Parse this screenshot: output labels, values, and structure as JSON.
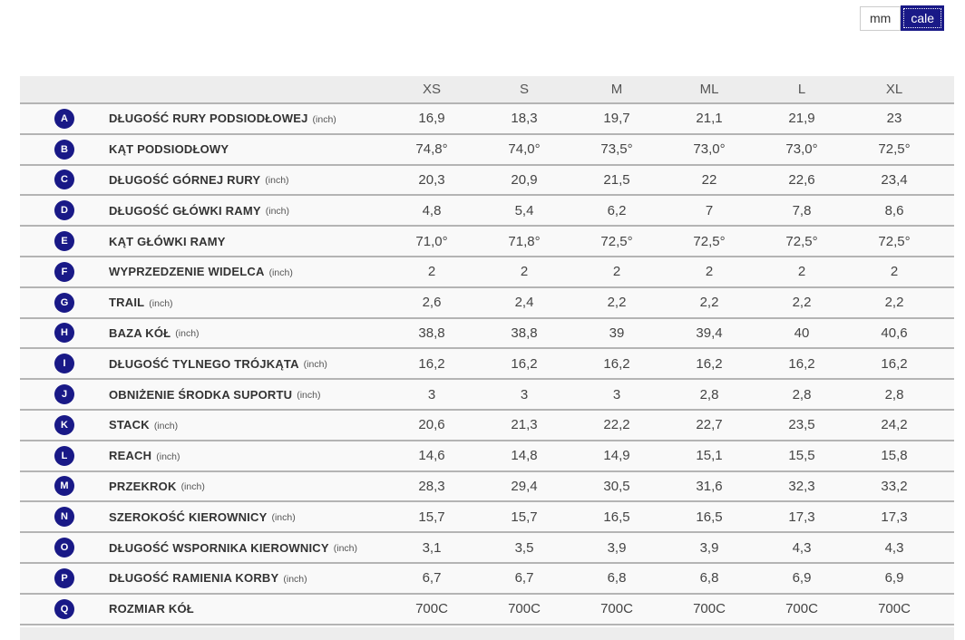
{
  "unit_toggle": {
    "mm_label": "mm",
    "cale_label": "cale",
    "selected": "cale"
  },
  "colors": {
    "accent_navy": "#191987",
    "header_background": "#ededed",
    "row_background": "#f9f9f9",
    "row_border": "#b4b4b4"
  },
  "table": {
    "sizes": [
      "XS",
      "S",
      "M",
      "ML",
      "L",
      "XL"
    ],
    "rows": [
      {
        "letter": "A",
        "label": "DŁUGOŚĆ RURY PODSIODŁOWEJ",
        "unit": "(inch)",
        "values": [
          "16,9",
          "18,3",
          "19,7",
          "21,1",
          "21,9",
          "23"
        ]
      },
      {
        "letter": "B",
        "label": "KĄT PODSIODŁOWY",
        "unit": "",
        "values": [
          "74,8°",
          "74,0°",
          "73,5°",
          "73,0°",
          "73,0°",
          "72,5°"
        ]
      },
      {
        "letter": "C",
        "label": "DŁUGOŚĆ GÓRNEJ RURY",
        "unit": "(inch)",
        "values": [
          "20,3",
          "20,9",
          "21,5",
          "22",
          "22,6",
          "23,4"
        ]
      },
      {
        "letter": "D",
        "label": "DŁUGOŚĆ GŁÓWKI RAMY",
        "unit": "(inch)",
        "values": [
          "4,8",
          "5,4",
          "6,2",
          "7",
          "7,8",
          "8,6"
        ]
      },
      {
        "letter": "E",
        "label": "KĄT GŁÓWKI RAMY",
        "unit": "",
        "values": [
          "71,0°",
          "71,8°",
          "72,5°",
          "72,5°",
          "72,5°",
          "72,5°"
        ]
      },
      {
        "letter": "F",
        "label": "WYPRZEDZENIE WIDELCA",
        "unit": "(inch)",
        "values": [
          "2",
          "2",
          "2",
          "2",
          "2",
          "2"
        ]
      },
      {
        "letter": "G",
        "label": "TRAIL",
        "unit": "(inch)",
        "values": [
          "2,6",
          "2,4",
          "2,2",
          "2,2",
          "2,2",
          "2,2"
        ]
      },
      {
        "letter": "H",
        "label": "BAZA KÓŁ",
        "unit": "(inch)",
        "values": [
          "38,8",
          "38,8",
          "39",
          "39,4",
          "40",
          "40,6"
        ]
      },
      {
        "letter": "I",
        "label": "DŁUGOŚĆ TYLNEGO TRÓJKĄTA",
        "unit": "(inch)",
        "values": [
          "16,2",
          "16,2",
          "16,2",
          "16,2",
          "16,2",
          "16,2"
        ]
      },
      {
        "letter": "J",
        "label": "OBNIŻENIE ŚRODKA SUPORTU",
        "unit": "(inch)",
        "values": [
          "3",
          "3",
          "3",
          "2,8",
          "2,8",
          "2,8"
        ]
      },
      {
        "letter": "K",
        "label": "STACK",
        "unit": "(inch)",
        "values": [
          "20,6",
          "21,3",
          "22,2",
          "22,7",
          "23,5",
          "24,2"
        ]
      },
      {
        "letter": "L",
        "label": "REACH",
        "unit": "(inch)",
        "values": [
          "14,6",
          "14,8",
          "14,9",
          "15,1",
          "15,5",
          "15,8"
        ]
      },
      {
        "letter": "M",
        "label": "PRZEKROK",
        "unit": "(inch)",
        "values": [
          "28,3",
          "29,4",
          "30,5",
          "31,6",
          "32,3",
          "33,2"
        ]
      },
      {
        "letter": "N",
        "label": "SZEROKOŚĆ KIEROWNICY",
        "unit": "(inch)",
        "values": [
          "15,7",
          "15,7",
          "16,5",
          "16,5",
          "17,3",
          "17,3"
        ]
      },
      {
        "letter": "O",
        "label": "DŁUGOŚĆ WSPORNIKA KIEROWNICY",
        "unit": "(inch)",
        "values": [
          "3,1",
          "3,5",
          "3,9",
          "3,9",
          "4,3",
          "4,3"
        ]
      },
      {
        "letter": "P",
        "label": "DŁUGOŚĆ RAMIENIA KORBY",
        "unit": "(inch)",
        "values": [
          "6,7",
          "6,7",
          "6,8",
          "6,8",
          "6,9",
          "6,9"
        ]
      },
      {
        "letter": "Q",
        "label": "ROZMIAR KÓŁ",
        "unit": "",
        "values": [
          "700C",
          "700C",
          "700C",
          "700C",
          "700C",
          "700C"
        ]
      }
    ]
  }
}
